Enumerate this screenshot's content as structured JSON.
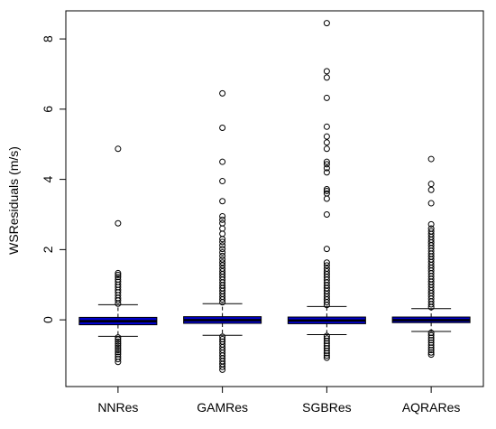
{
  "chart_data": {
    "type": "boxplot",
    "ylabel": "WSResiduals (m/s)",
    "xlabel": "",
    "title": "",
    "ylim": [
      -1.9,
      8.8
    ],
    "yticks": [
      0,
      2,
      4,
      6,
      8
    ],
    "box_fill": "#0000cc",
    "median_color": "#000000",
    "categories": [
      "NNRes",
      "GAMRes",
      "SGBRes",
      "AQRARes"
    ],
    "series": [
      {
        "name": "NNRes",
        "q1": -0.14,
        "median": -0.04,
        "q3": 0.07,
        "whisker_low": -0.47,
        "whisker_high": 0.43,
        "outliers_high": [
          0.46,
          0.55,
          0.62,
          0.7,
          0.78,
          0.85,
          0.93,
          1.0,
          1.08,
          1.15,
          1.22,
          1.28,
          1.33,
          2.75,
          4.87
        ],
        "outliers_low": [
          -0.5,
          -0.56,
          -0.62,
          -0.68,
          -0.74,
          -0.8,
          -0.86,
          -0.92,
          -0.98,
          -1.05,
          -1.12,
          -1.2
        ]
      },
      {
        "name": "GAMRes",
        "q1": -0.1,
        "median": -0.01,
        "q3": 0.09,
        "whisker_low": -0.44,
        "whisker_high": 0.46,
        "outliers_high": [
          0.5,
          0.58,
          0.66,
          0.74,
          0.82,
          0.9,
          0.98,
          1.06,
          1.14,
          1.22,
          1.3,
          1.38,
          1.46,
          1.55,
          1.63,
          1.72,
          1.82,
          1.92,
          2.02,
          2.12,
          2.22,
          2.3,
          2.45,
          2.6,
          2.75,
          2.85,
          2.95,
          3.38,
          3.95,
          4.5,
          5.47,
          6.45
        ],
        "outliers_low": [
          -0.48,
          -0.55,
          -0.62,
          -0.7,
          -0.78,
          -0.86,
          -0.94,
          -1.02,
          -1.1,
          -1.18,
          -1.26,
          -1.34,
          -1.42
        ]
      },
      {
        "name": "SGBRes",
        "q1": -0.11,
        "median": -0.02,
        "q3": 0.08,
        "whisker_low": -0.42,
        "whisker_high": 0.38,
        "outliers_high": [
          0.42,
          0.5,
          0.58,
          0.66,
          0.74,
          0.82,
          0.9,
          0.98,
          1.06,
          1.14,
          1.22,
          1.3,
          1.38,
          1.46,
          1.55,
          1.63,
          2.02,
          3.0,
          3.45,
          3.6,
          3.67,
          3.72,
          4.2,
          4.32,
          4.43,
          4.5,
          4.87,
          5.05,
          5.22,
          5.5,
          6.32,
          6.9,
          7.08,
          8.45
        ],
        "outliers_low": [
          -0.46,
          -0.53,
          -0.6,
          -0.67,
          -0.74,
          -0.81,
          -0.88,
          -0.95,
          -1.02,
          -1.08
        ]
      },
      {
        "name": "AQRARes",
        "q1": -0.08,
        "median": -0.01,
        "q3": 0.08,
        "whisker_low": -0.33,
        "whisker_high": 0.32,
        "outliers_high": [
          0.36,
          0.44,
          0.52,
          0.6,
          0.68,
          0.76,
          0.84,
          0.92,
          1.0,
          1.08,
          1.16,
          1.24,
          1.32,
          1.4,
          1.48,
          1.56,
          1.64,
          1.72,
          1.8,
          1.88,
          1.96,
          2.04,
          2.12,
          2.2,
          2.28,
          2.36,
          2.44,
          2.52,
          2.6,
          2.72,
          3.32,
          3.7,
          3.87,
          4.58
        ],
        "outliers_low": [
          -0.37,
          -0.44,
          -0.51,
          -0.58,
          -0.65,
          -0.72,
          -0.79,
          -0.86,
          -0.93,
          -0.99
        ]
      }
    ]
  }
}
